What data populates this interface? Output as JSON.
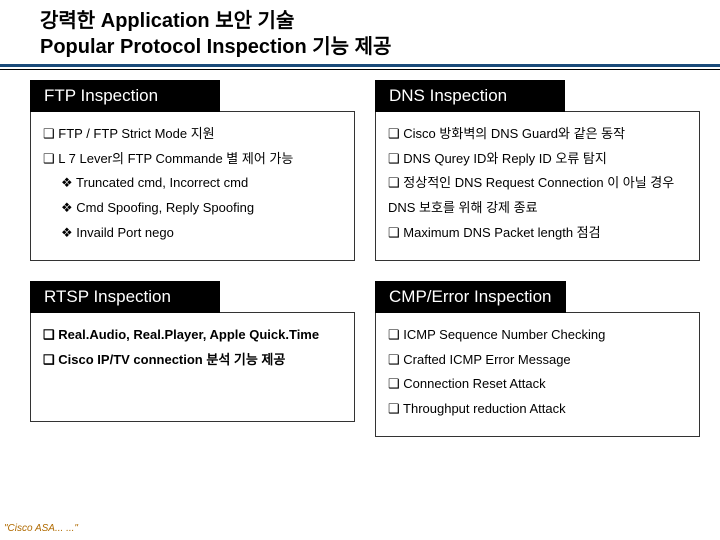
{
  "title": {
    "line1": "강력한 Application 보안 기술",
    "line2": "Popular Protocol Inspection 기능 제공"
  },
  "panels": {
    "ftp": {
      "heading": "FTP Inspection",
      "items": [
        {
          "level": 1,
          "style": "sq",
          "bold": false,
          "text": "FTP / FTP Strict Mode 지원"
        },
        {
          "level": 1,
          "style": "sq",
          "bold": false,
          "text": "L 7 Lever의  FTP Commande 별  제어 가능"
        },
        {
          "level": 2,
          "style": "di",
          "bold": false,
          "text": "Truncated cmd, Incorrect cmd"
        },
        {
          "level": 2,
          "style": "di",
          "bold": false,
          "text": "Cmd Spoofing, Reply Spoofing"
        },
        {
          "level": 2,
          "style": "di",
          "bold": false,
          "text": "Invaild Port nego"
        }
      ]
    },
    "dns": {
      "heading": "DNS Inspection",
      "items": [
        {
          "level": 1,
          "style": "sq",
          "bold": false,
          "text": "Cisco 방화벽의 DNS Guard와 같은 동작"
        },
        {
          "level": 1,
          "style": "sq",
          "bold": false,
          "text": "DNS Qurey ID와 Reply ID 오류 탐지"
        },
        {
          "level": 1,
          "style": "sq",
          "bold": false,
          "text": "정상적인 DNS Request Connection 이 아닐 경우 DNS 보호를 위해 강제 종료"
        },
        {
          "level": 1,
          "style": "sq",
          "bold": false,
          "text": "Maximum DNS Packet length 점검"
        }
      ]
    },
    "rtsp": {
      "heading": "RTSP Inspection",
      "items": [
        {
          "level": 1,
          "style": "sq",
          "bold": true,
          "text": "Real.Audio, Real.Player, Apple Quick.Time"
        },
        {
          "level": 1,
          "style": "sq",
          "bold": true,
          "text": "Cisco IP/TV connection 분석 기능 제공"
        }
      ]
    },
    "icmp": {
      "heading": "CMP/Error Inspection",
      "items": [
        {
          "level": 1,
          "style": "sq",
          "bold": false,
          "text": "ICMP Sequence Number Checking"
        },
        {
          "level": 1,
          "style": "sq",
          "bold": false,
          "text": "Crafted ICMP Error Message"
        },
        {
          "level": 1,
          "style": "sq",
          "bold": false,
          "text": "Connection Reset Attack"
        },
        {
          "level": 1,
          "style": "sq",
          "bold": false,
          "text": "Throughput reduction Attack"
        }
      ]
    }
  },
  "footer": "\"Cisco  ASA...  ...\"",
  "colors": {
    "accent": "#1a4b7a",
    "panel_title_bg": "#000000",
    "panel_title_fg": "#ffffff",
    "border": "#333333",
    "background": "#ffffff",
    "footer_text": "#b06a00"
  }
}
